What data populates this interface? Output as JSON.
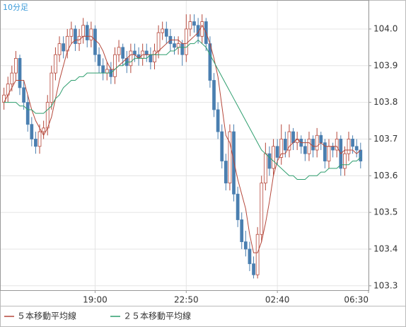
{
  "chart_data": {
    "type": "candlestick",
    "title": "10分足",
    "up_color": "#b5473a",
    "down_color": "#4a7fb0",
    "candles": [
      [
        103.8,
        103.84,
        103.78,
        103.82
      ],
      [
        103.82,
        103.87,
        103.8,
        103.85
      ],
      [
        103.85,
        103.9,
        103.83,
        103.88
      ],
      [
        103.88,
        103.94,
        103.86,
        103.92
      ],
      [
        103.92,
        103.93,
        103.82,
        103.84
      ],
      [
        103.84,
        103.86,
        103.78,
        103.8
      ],
      [
        103.8,
        103.82,
        103.72,
        103.74
      ],
      [
        103.74,
        103.76,
        103.68,
        103.7
      ],
      [
        103.7,
        103.72,
        103.66,
        103.68
      ],
      [
        103.68,
        103.74,
        103.66,
        103.72
      ],
      [
        103.72,
        103.75,
        103.7,
        103.73
      ],
      [
        103.73,
        103.82,
        103.71,
        103.8
      ],
      [
        103.8,
        103.9,
        103.78,
        103.88
      ],
      [
        103.88,
        103.95,
        103.86,
        103.93
      ],
      [
        103.93,
        103.98,
        103.91,
        103.96
      ],
      [
        103.96,
        103.98,
        103.92,
        103.94
      ],
      [
        103.94,
        104.0,
        103.92,
        103.98
      ],
      [
        103.98,
        104.02,
        103.96,
        104.0
      ],
      [
        104.0,
        104.01,
        103.94,
        103.96
      ],
      [
        103.96,
        104.0,
        103.94,
        103.98
      ],
      [
        103.98,
        104.03,
        103.96,
        104.01
      ],
      [
        104.01,
        104.02,
        103.95,
        103.97
      ],
      [
        103.97,
        104.02,
        103.95,
        104.0
      ],
      [
        104.0,
        104.01,
        103.91,
        103.93
      ],
      [
        103.93,
        103.95,
        103.88,
        103.9
      ],
      [
        103.9,
        103.92,
        103.86,
        103.88
      ],
      [
        103.88,
        103.91,
        103.86,
        103.89
      ],
      [
        103.89,
        103.91,
        103.85,
        103.87
      ],
      [
        103.87,
        103.95,
        103.85,
        103.93
      ],
      [
        103.93,
        103.97,
        103.91,
        103.95
      ],
      [
        103.95,
        103.96,
        103.9,
        103.92
      ],
      [
        103.92,
        103.94,
        103.88,
        103.9
      ],
      [
        103.9,
        103.96,
        103.88,
        103.94
      ],
      [
        103.94,
        103.96,
        103.91,
        103.93
      ],
      [
        103.93,
        103.95,
        103.9,
        103.92
      ],
      [
        103.92,
        103.96,
        103.9,
        103.94
      ],
      [
        103.94,
        103.96,
        103.91,
        103.93
      ],
      [
        103.93,
        103.95,
        103.89,
        103.91
      ],
      [
        103.91,
        103.96,
        103.89,
        103.94
      ],
      [
        103.94,
        104.01,
        103.92,
        103.99
      ],
      [
        103.99,
        104.02,
        103.97,
        104.0
      ],
      [
        104.0,
        104.02,
        103.96,
        103.98
      ],
      [
        103.98,
        104.0,
        103.94,
        103.96
      ],
      [
        103.96,
        103.98,
        103.93,
        103.95
      ],
      [
        103.95,
        103.98,
        103.93,
        103.96
      ],
      [
        103.96,
        103.97,
        103.9,
        103.93
      ],
      [
        103.93,
        104.04,
        103.91,
        104.0
      ],
      [
        104.0,
        104.04,
        103.98,
        104.02
      ],
      [
        104.02,
        104.04,
        103.99,
        104.01
      ],
      [
        104.01,
        104.03,
        103.96,
        103.98
      ],
      [
        103.98,
        104.04,
        103.96,
        104.02
      ],
      [
        104.02,
        104.03,
        103.94,
        103.96
      ],
      [
        103.96,
        103.98,
        103.84,
        103.86
      ],
      [
        103.86,
        103.88,
        103.76,
        103.78
      ],
      [
        103.78,
        103.8,
        103.7,
        103.72
      ],
      [
        103.72,
        103.74,
        103.62,
        103.64
      ],
      [
        103.64,
        103.66,
        103.56,
        103.58
      ],
      [
        103.58,
        103.74,
        103.56,
        103.72
      ],
      [
        103.72,
        103.74,
        103.53,
        103.55
      ],
      [
        103.55,
        103.57,
        103.46,
        103.48
      ],
      [
        103.48,
        103.5,
        103.4,
        103.42
      ],
      [
        103.42,
        103.45,
        103.38,
        103.4
      ],
      [
        103.4,
        103.42,
        103.34,
        103.36
      ],
      [
        103.36,
        103.38,
        103.32,
        103.33
      ],
      [
        103.33,
        103.46,
        103.32,
        103.44
      ],
      [
        103.44,
        103.6,
        103.42,
        103.58
      ],
      [
        103.58,
        103.69,
        103.56,
        103.66
      ],
      [
        103.66,
        103.68,
        103.6,
        103.62
      ],
      [
        103.62,
        103.7,
        103.6,
        103.68
      ],
      [
        103.68,
        103.7,
        103.63,
        103.65
      ],
      [
        103.65,
        103.74,
        103.63,
        103.7
      ],
      [
        103.7,
        103.72,
        103.65,
        103.67
      ],
      [
        103.67,
        103.74,
        103.65,
        103.72
      ],
      [
        103.72,
        103.73,
        103.67,
        103.69
      ],
      [
        103.69,
        103.72,
        103.67,
        103.7
      ],
      [
        103.7,
        103.71,
        103.66,
        103.68
      ],
      [
        103.68,
        103.7,
        103.64,
        103.66
      ],
      [
        103.66,
        103.72,
        103.64,
        103.7
      ],
      [
        103.7,
        103.71,
        103.65,
        103.67
      ],
      [
        103.67,
        103.73,
        103.65,
        103.71
      ],
      [
        103.71,
        103.72,
        103.67,
        103.69
      ],
      [
        103.69,
        103.7,
        103.62,
        103.64
      ],
      [
        103.64,
        103.7,
        103.62,
        103.68
      ],
      [
        103.68,
        103.69,
        103.65,
        103.67
      ],
      [
        103.67,
        103.72,
        103.65,
        103.7
      ],
      [
        103.7,
        103.71,
        103.6,
        103.62
      ],
      [
        103.62,
        103.68,
        103.6,
        103.66
      ],
      [
        103.66,
        103.72,
        103.64,
        103.7
      ],
      [
        103.7,
        103.71,
        103.66,
        103.68
      ],
      [
        103.68,
        103.7,
        103.65,
        103.67
      ],
      [
        103.67,
        103.69,
        103.62,
        103.64
      ]
    ],
    "series": [
      {
        "name": "５本移動平均線",
        "color": "#b5473a",
        "values": [
          103.8,
          103.82,
          103.84,
          103.86,
          103.86,
          103.86,
          103.82,
          103.78,
          103.75,
          103.73,
          103.71,
          103.73,
          103.76,
          103.81,
          103.86,
          103.9,
          103.94,
          103.96,
          103.97,
          103.97,
          103.98,
          103.98,
          103.98,
          103.97,
          103.96,
          103.94,
          103.91,
          103.89,
          103.89,
          103.9,
          103.91,
          103.92,
          103.93,
          103.93,
          103.92,
          103.93,
          103.93,
          103.93,
          103.93,
          103.94,
          103.95,
          103.96,
          103.97,
          103.97,
          103.97,
          103.96,
          103.96,
          103.97,
          103.98,
          103.99,
          104.01,
          103.99,
          103.96,
          103.92,
          103.87,
          103.79,
          103.71,
          103.69,
          103.64,
          103.59,
          103.55,
          103.51,
          103.44,
          103.39,
          103.39,
          103.42,
          103.47,
          103.53,
          103.6,
          103.64,
          103.66,
          103.66,
          103.68,
          103.69,
          103.7,
          103.69,
          103.69,
          103.69,
          103.68,
          103.68,
          103.69,
          103.68,
          103.68,
          103.68,
          103.68,
          103.66,
          103.67,
          103.67,
          103.67,
          103.66,
          103.67
        ]
      },
      {
        "name": "２５本移動平均線",
        "color": "#2e9e6e",
        "values": [
          103.8,
          103.8,
          103.8,
          103.8,
          103.79,
          103.79,
          103.78,
          103.78,
          103.77,
          103.77,
          103.77,
          103.78,
          103.79,
          103.81,
          103.82,
          103.84,
          103.85,
          103.86,
          103.86,
          103.87,
          103.87,
          103.88,
          103.88,
          103.88,
          103.88,
          103.88,
          103.88,
          103.88,
          103.89,
          103.9,
          103.9,
          103.91,
          103.91,
          103.92,
          103.92,
          103.92,
          103.92,
          103.93,
          103.93,
          103.93,
          103.93,
          103.93,
          103.94,
          103.94,
          103.95,
          103.95,
          103.95,
          103.96,
          103.96,
          103.97,
          103.96,
          103.95,
          103.93,
          103.91,
          103.89,
          103.87,
          103.85,
          103.83,
          103.81,
          103.79,
          103.77,
          103.75,
          103.73,
          103.71,
          103.69,
          103.67,
          103.66,
          103.65,
          103.64,
          103.63,
          103.62,
          103.61,
          103.6,
          103.6,
          103.59,
          103.59,
          103.59,
          103.6,
          103.6,
          103.6,
          103.61,
          103.61,
          103.62,
          103.62,
          103.62,
          103.63,
          103.63,
          103.63,
          103.64,
          103.64,
          103.65
        ]
      }
    ],
    "xlim": [
      -1,
      92
    ],
    "xticks": [
      {
        "value": 23,
        "label": "19:00"
      },
      {
        "value": 46,
        "label": "22:50"
      },
      {
        "value": 69,
        "label": "02:40"
      },
      {
        "value": 92,
        "label": "06:30"
      }
    ],
    "ylim": [
      103.288,
      104.079
    ],
    "yticks": [
      103.3,
      103.4,
      103.5,
      103.6,
      103.7,
      103.8,
      103.9,
      {
        "value": 104,
        "label": "104.0"
      }
    ],
    "grid": true
  }
}
